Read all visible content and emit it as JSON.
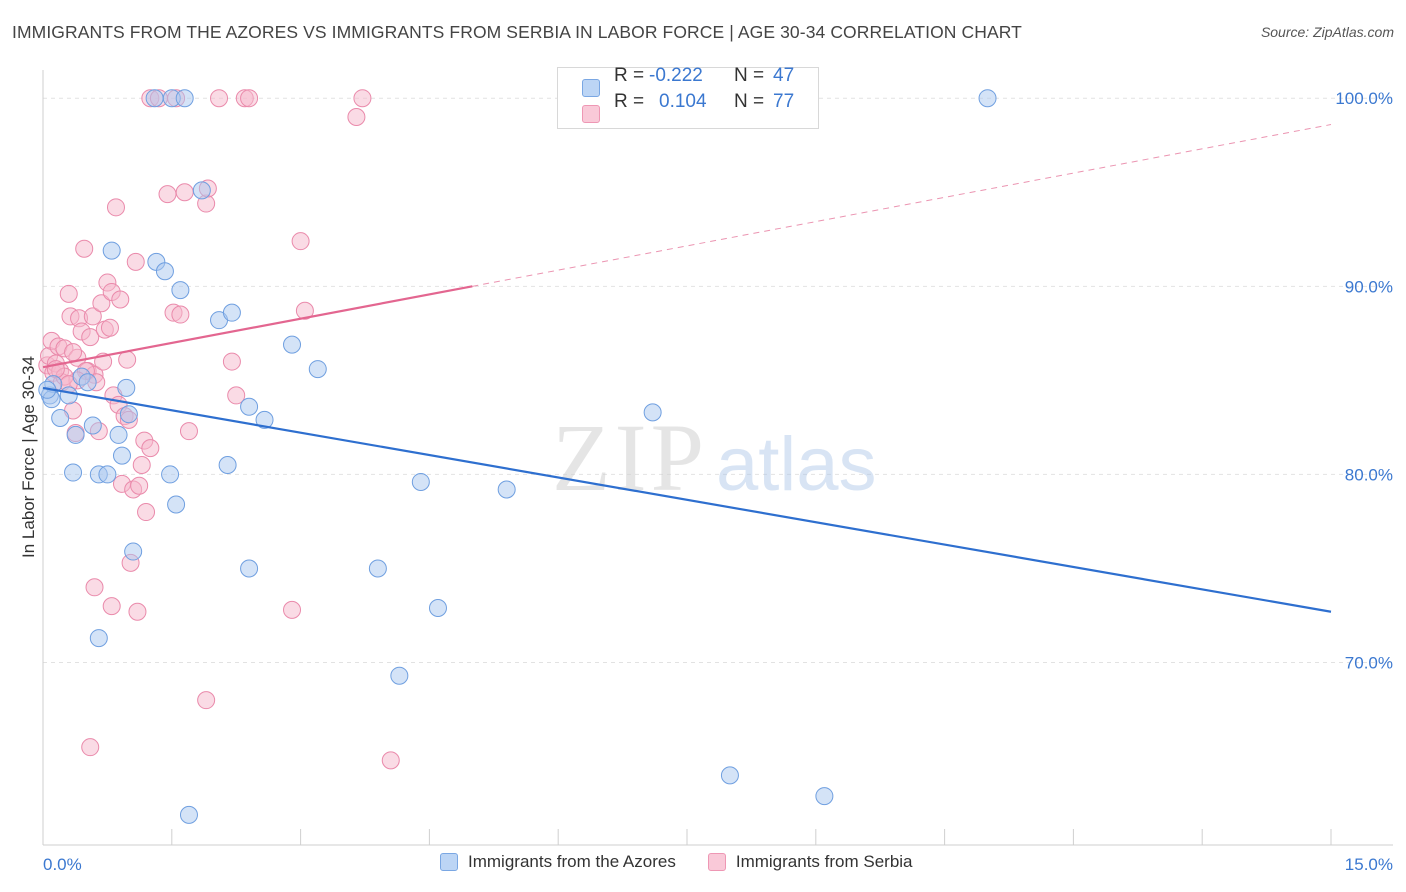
{
  "title": "IMMIGRANTS FROM THE AZORES VS IMMIGRANTS FROM SERBIA IN LABOR FORCE | AGE 30-34 CORRELATION CHART",
  "source": "Source: ZipAtlas.com",
  "watermark": {
    "zip": "ZIP",
    "atlas": "atlas"
  },
  "stats": {
    "r_label": "R =",
    "n_label": "N =",
    "azores": {
      "r": "-0.222",
      "n": "47"
    },
    "serbia": {
      "r": "0.104",
      "n": "77"
    }
  },
  "legend": {
    "azores": "Immigrants from the Azores",
    "serbia": "Immigrants from Serbia"
  },
  "colors": {
    "azores_fill": "#a9c8f0",
    "azores_stroke": "#6f9fe0",
    "azores_line": "#2e6fcf",
    "serbia_fill": "#f6b8cb",
    "serbia_stroke": "#ea8aab",
    "serbia_line": "#e36690",
    "axis_label": "#3b78d0"
  },
  "chart_data": {
    "type": "scatter",
    "title": "IMMIGRANTS FROM THE AZORES VS IMMIGRANTS FROM SERBIA IN LABOR FORCE | AGE 30-34 CORRELATION CHART",
    "xlabel": "",
    "ylabel": "In Labor Force | Age 30-34",
    "xlim": [
      0,
      15
    ],
    "ylim": [
      60.3,
      101.5
    ],
    "x_tick_labels": [
      "0.0%",
      "15.0%"
    ],
    "y_ticks": [
      70,
      80,
      90,
      100
    ],
    "y_tick_labels": [
      "70.0%",
      "80.0%",
      "90.0%",
      "100.0%"
    ],
    "series": [
      {
        "name": "Immigrants from the Azores",
        "points": [
          [
            0.08,
            84.2
          ],
          [
            0.12,
            84.8
          ],
          [
            0.2,
            83.0
          ],
          [
            0.3,
            84.2
          ],
          [
            0.35,
            80.1
          ],
          [
            0.38,
            82.1
          ],
          [
            0.45,
            85.2
          ],
          [
            0.52,
            84.9
          ],
          [
            0.58,
            82.6
          ],
          [
            0.65,
            80.0
          ],
          [
            0.75,
            80.0
          ],
          [
            0.88,
            82.1
          ],
          [
            0.92,
            81.0
          ],
          [
            0.97,
            84.6
          ],
          [
            0.8,
            91.9
          ],
          [
            1.05,
            75.9
          ],
          [
            1.3,
            100.0
          ],
          [
            1.32,
            91.3
          ],
          [
            1.42,
            90.8
          ],
          [
            1.5,
            100.0
          ],
          [
            1.48,
            80.0
          ],
          [
            1.55,
            78.4
          ],
          [
            1.6,
            89.8
          ],
          [
            1.65,
            100.0
          ],
          [
            1.85,
            95.1
          ],
          [
            2.05,
            88.2
          ],
          [
            2.2,
            88.6
          ],
          [
            2.15,
            80.5
          ],
          [
            2.4,
            75.0
          ],
          [
            2.4,
            83.6
          ],
          [
            2.58,
            82.9
          ],
          [
            2.9,
            86.9
          ],
          [
            3.2,
            85.6
          ],
          [
            3.9,
            75.0
          ],
          [
            4.15,
            69.3
          ],
          [
            4.4,
            79.6
          ],
          [
            4.6,
            72.9
          ],
          [
            5.4,
            79.2
          ],
          [
            7.1,
            83.3
          ],
          [
            8.0,
            64.0
          ],
          [
            9.1,
            62.9
          ],
          [
            11.0,
            100.0
          ],
          [
            1.7,
            61.9
          ],
          [
            0.65,
            71.3
          ],
          [
            0.1,
            84.0
          ],
          [
            0.05,
            84.5
          ],
          [
            1.0,
            83.2
          ]
        ]
      },
      {
        "name": "Immigrants from Serbia",
        "points": [
          [
            0.05,
            85.8
          ],
          [
            0.07,
            86.3
          ],
          [
            0.1,
            87.1
          ],
          [
            0.12,
            85.4
          ],
          [
            0.15,
            85.9
          ],
          [
            0.18,
            86.8
          ],
          [
            0.2,
            85.5
          ],
          [
            0.22,
            84.9
          ],
          [
            0.25,
            86.7
          ],
          [
            0.3,
            89.6
          ],
          [
            0.32,
            88.4
          ],
          [
            0.35,
            83.4
          ],
          [
            0.38,
            82.2
          ],
          [
            0.4,
            86.2
          ],
          [
            0.42,
            88.3
          ],
          [
            0.45,
            87.6
          ],
          [
            0.48,
            92.0
          ],
          [
            0.52,
            85.5
          ],
          [
            0.55,
            87.3
          ],
          [
            0.58,
            88.4
          ],
          [
            0.6,
            85.3
          ],
          [
            0.62,
            84.9
          ],
          [
            0.65,
            82.3
          ],
          [
            0.68,
            89.1
          ],
          [
            0.72,
            87.7
          ],
          [
            0.75,
            90.2
          ],
          [
            0.78,
            87.8
          ],
          [
            0.8,
            89.7
          ],
          [
            0.82,
            84.2
          ],
          [
            0.85,
            94.2
          ],
          [
            0.88,
            83.7
          ],
          [
            0.9,
            89.3
          ],
          [
            0.92,
            79.5
          ],
          [
            0.95,
            83.1
          ],
          [
            0.98,
            86.1
          ],
          [
            1.0,
            82.9
          ],
          [
            1.02,
            75.3
          ],
          [
            1.05,
            79.2
          ],
          [
            1.08,
            91.3
          ],
          [
            1.1,
            72.7
          ],
          [
            1.12,
            79.4
          ],
          [
            1.15,
            80.5
          ],
          [
            1.18,
            81.8
          ],
          [
            1.2,
            78.0
          ],
          [
            1.25,
            100.0
          ],
          [
            1.35,
            100.0
          ],
          [
            1.45,
            94.9
          ],
          [
            1.52,
            88.6
          ],
          [
            1.6,
            88.5
          ],
          [
            1.65,
            95.0
          ],
          [
            1.7,
            82.3
          ],
          [
            1.9,
            94.4
          ],
          [
            1.92,
            95.2
          ],
          [
            2.05,
            100.0
          ],
          [
            2.2,
            86.0
          ],
          [
            2.25,
            84.2
          ],
          [
            2.35,
            100.0
          ],
          [
            2.4,
            100.0
          ],
          [
            2.9,
            72.8
          ],
          [
            3.0,
            92.4
          ],
          [
            3.05,
            88.7
          ],
          [
            3.65,
            99.0
          ],
          [
            3.72,
            100.0
          ],
          [
            4.05,
            64.8
          ],
          [
            0.6,
            74.0
          ],
          [
            0.55,
            65.5
          ],
          [
            1.9,
            68.0
          ],
          [
            0.8,
            73.0
          ],
          [
            1.25,
            81.4
          ],
          [
            0.5,
            85.5
          ],
          [
            0.4,
            85.0
          ],
          [
            0.35,
            86.5
          ],
          [
            0.7,
            86.0
          ],
          [
            0.25,
            85.2
          ],
          [
            1.55,
            100.0
          ],
          [
            0.15,
            85.6
          ],
          [
            0.3,
            84.8
          ]
        ]
      }
    ],
    "trend_lines": [
      {
        "series": "Immigrants from the Azores",
        "x": [
          0.0,
          15.0
        ],
        "y": [
          84.6,
          72.7
        ],
        "style": "solid"
      },
      {
        "series": "Immigrants from Serbia",
        "x": [
          0.0,
          5.0
        ],
        "y": [
          85.7,
          90.0
        ],
        "style": "solid"
      },
      {
        "series": "Immigrants from Serbia",
        "x": [
          5.0,
          15.0
        ],
        "y": [
          90.0,
          98.6
        ],
        "style": "dashed"
      }
    ]
  }
}
